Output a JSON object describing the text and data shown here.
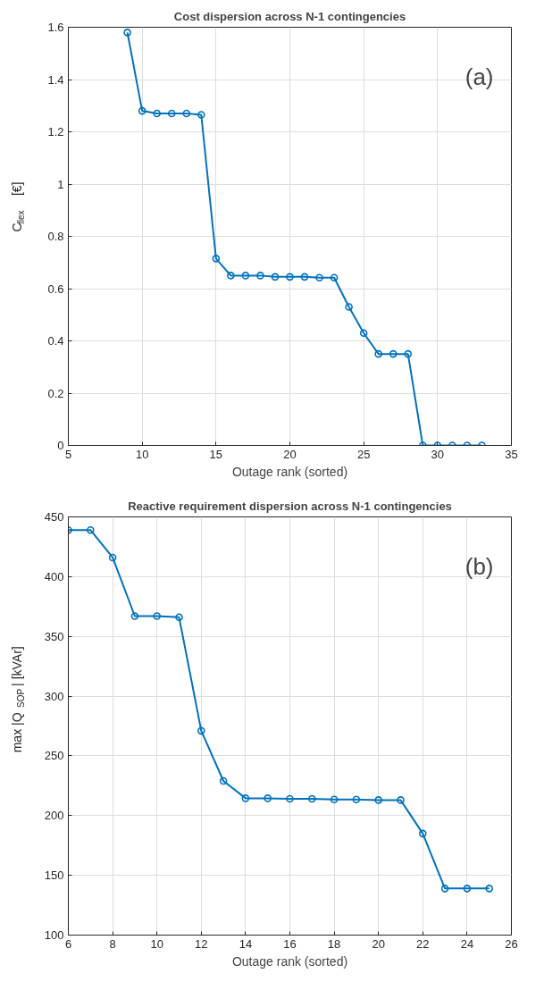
{
  "chart_data": [
    {
      "type": "line",
      "title": "Cost dispersion across N-1 contingencies",
      "xlabel": "Outage rank (sorted)",
      "ylabel": "C$_{flex}$ [€]",
      "x": [
        9,
        10,
        11,
        12,
        13,
        14,
        15,
        16,
        17,
        18,
        19,
        20,
        21,
        22,
        23,
        24,
        25,
        26,
        27,
        28,
        29,
        30,
        31,
        32,
        33
      ],
      "series": [
        {
          "color": "#0072bd",
          "values": [
            1.58,
            1.28,
            1.27,
            1.27,
            1.27,
            1.265,
            0.715,
            0.65,
            0.65,
            0.65,
            0.645,
            0.645,
            0.645,
            0.642,
            0.642,
            0.53,
            0.43,
            0.35,
            0.35,
            0.35,
            0,
            0,
            0,
            0,
            0
          ]
        }
      ],
      "xlim": [
        5,
        35
      ],
      "xticks": [
        5,
        10,
        15,
        20,
        25,
        30,
        35
      ],
      "ylim": [
        0,
        1.6
      ],
      "yticks": [
        0,
        0.2,
        0.4,
        0.6,
        0.8,
        1,
        1.2,
        1.4,
        1.6
      ],
      "grid": true,
      "marker": "circle",
      "line_style": "solid",
      "annotations": [
        "(a)"
      ]
    },
    {
      "type": "line",
      "title": "Reactive requirement dispersion across N-1 contingencies",
      "xlabel": "Outage rank (sorted)",
      "ylabel": "max |Q$_{SOP}$| [kVAr]",
      "x": [
        6,
        7,
        8,
        9,
        10,
        11,
        12,
        13,
        14,
        15,
        16,
        17,
        18,
        19,
        20,
        21,
        22,
        23,
        24,
        25
      ],
      "series": [
        {
          "color": "#0072bd",
          "values": [
            439,
            439,
            416,
            367,
            367,
            366,
            271,
            229,
            214.5,
            214.5,
            214,
            214,
            213.5,
            213.5,
            213,
            213,
            185,
            139,
            139,
            139
          ]
        }
      ],
      "xlim": [
        6,
        26
      ],
      "xticks": [
        6,
        8,
        10,
        12,
        14,
        16,
        18,
        20,
        22,
        24,
        26
      ],
      "ylim": [
        100,
        450
      ],
      "yticks": [
        100,
        150,
        200,
        250,
        300,
        350,
        400,
        450
      ],
      "grid": true,
      "marker": "circle",
      "line_style": "solid",
      "annotations": [
        "(b)"
      ]
    }
  ]
}
